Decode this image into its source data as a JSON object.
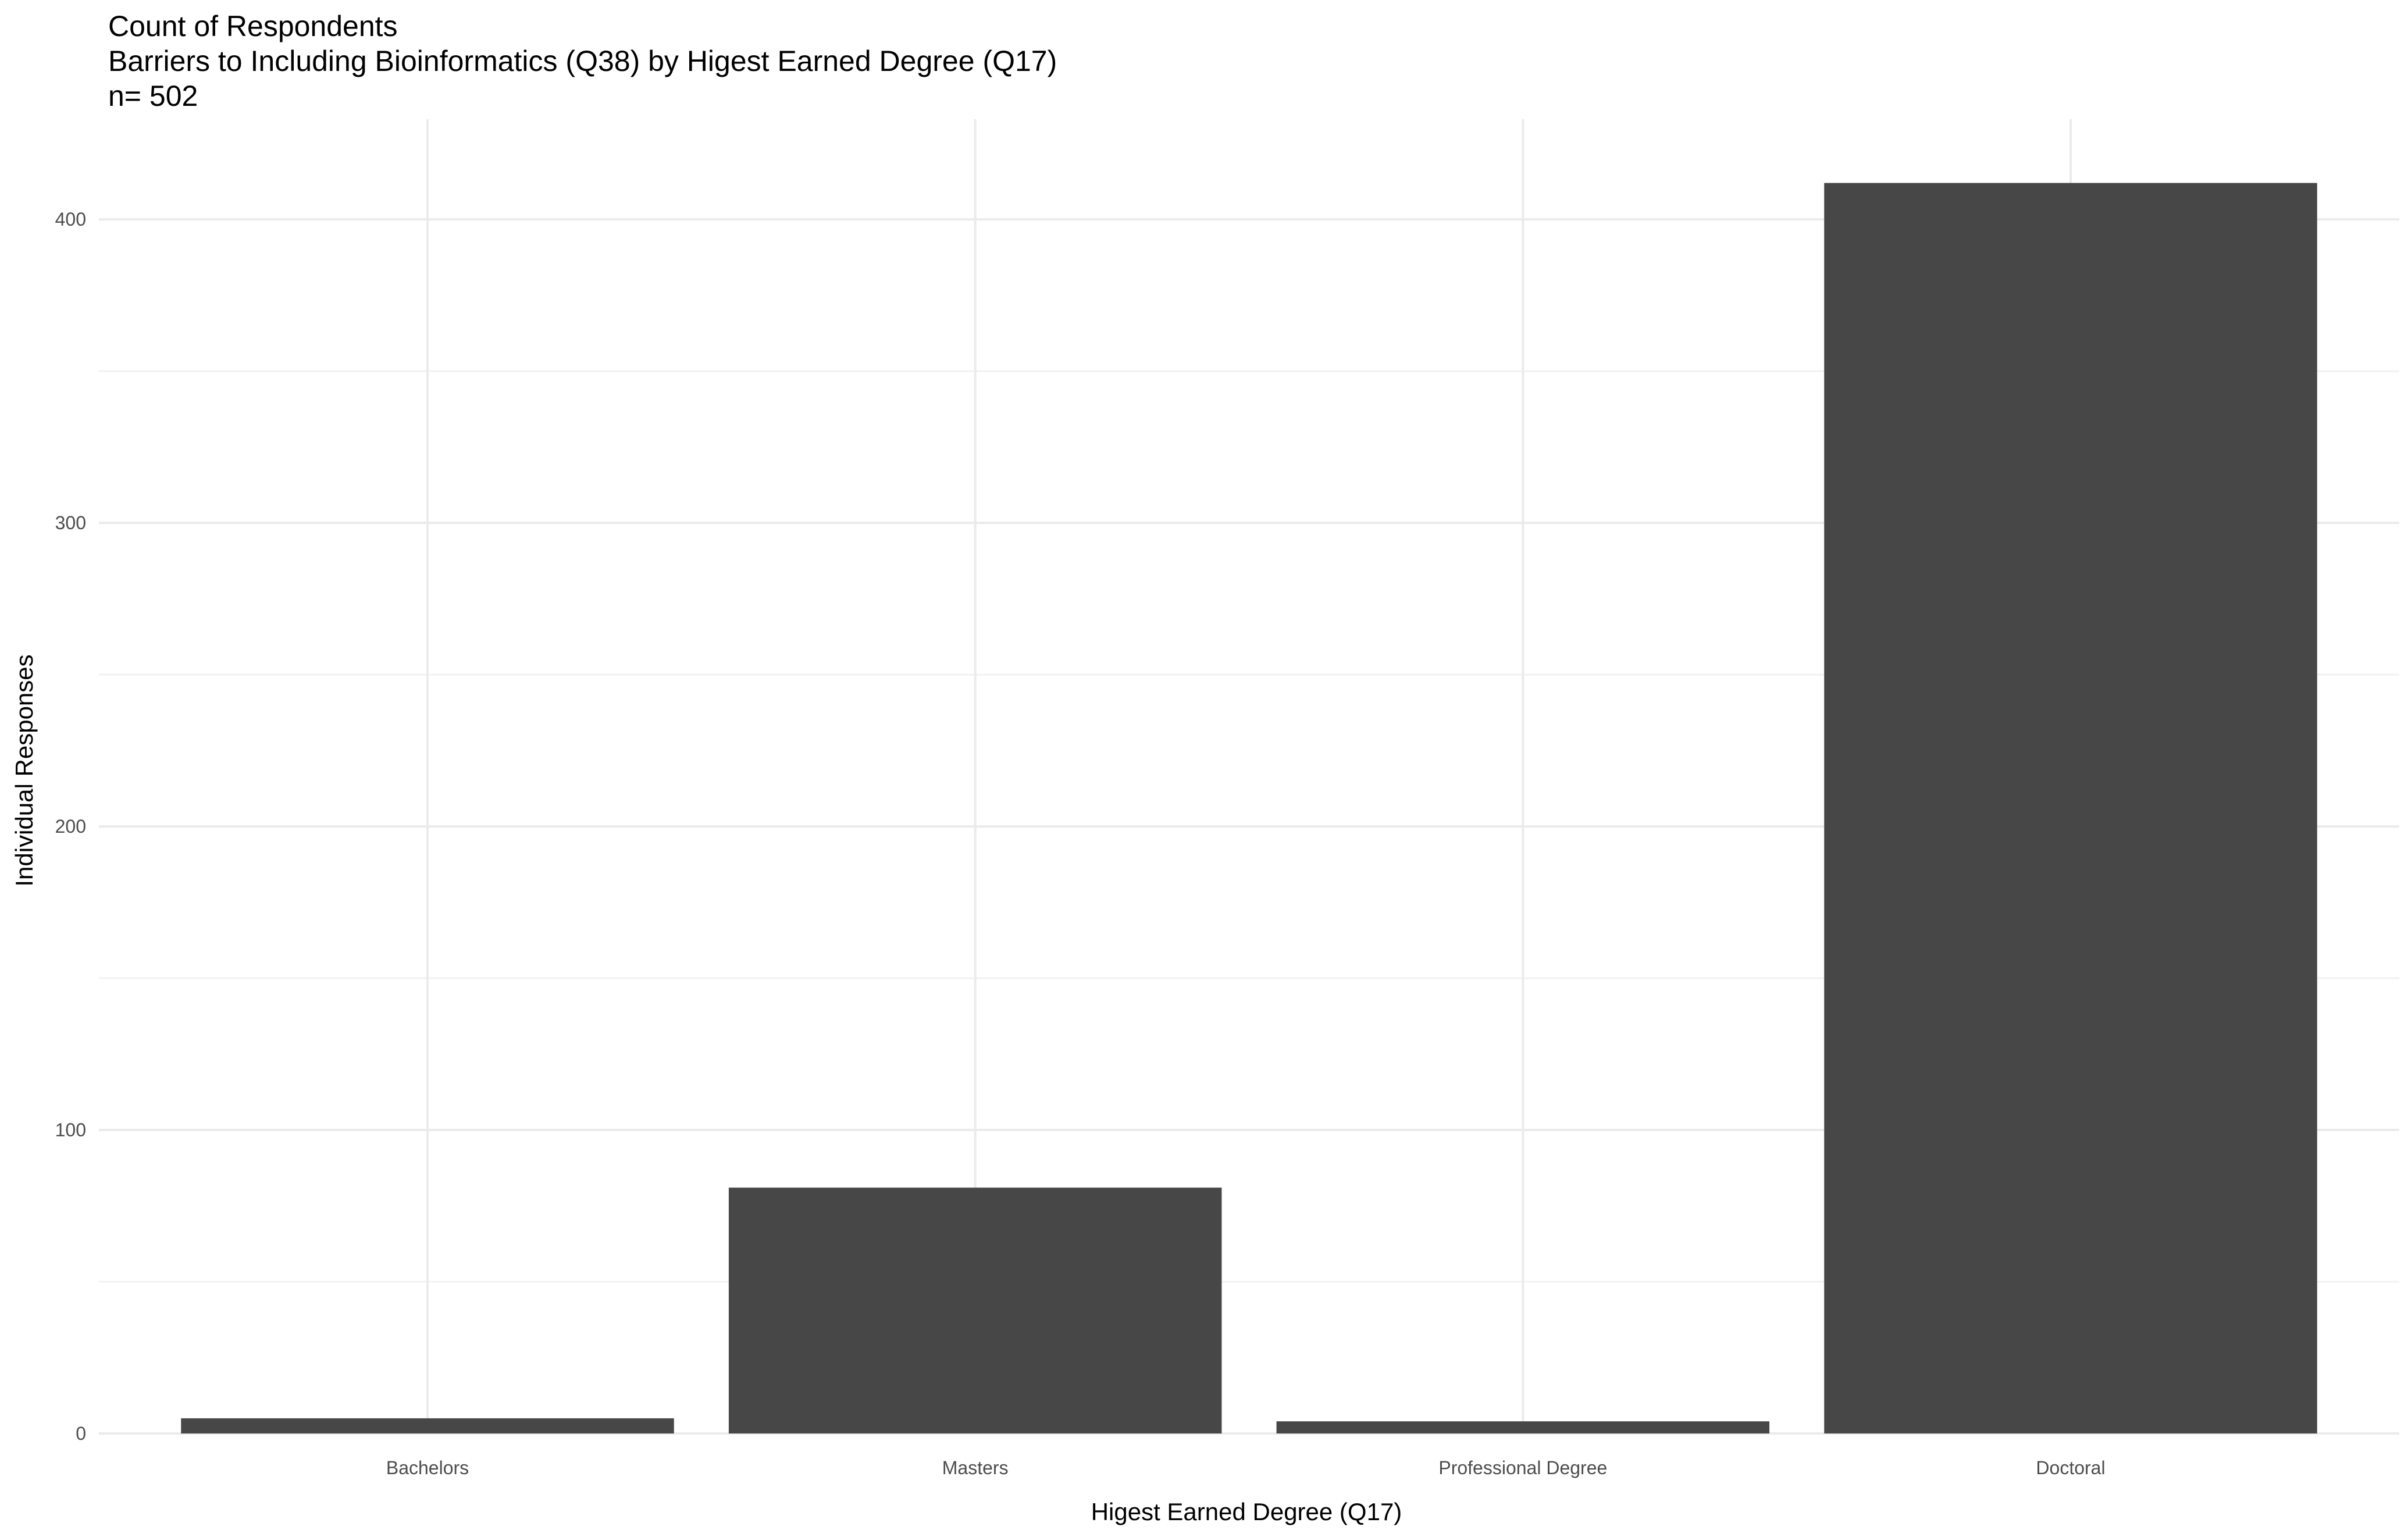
{
  "chart_data": {
    "type": "bar",
    "title_lines": [
      "Count of Respondents",
      "Barriers to Including Bioinformatics (Q38) by Higest Earned Degree (Q17)",
      "n= 502"
    ],
    "xlabel": "Higest Earned Degree (Q17)",
    "ylabel": "Individual Responses",
    "categories": [
      "Bachelors",
      "Masters",
      "Professional Degree",
      "Doctoral"
    ],
    "values": [
      5,
      81,
      4,
      412
    ],
    "ylim": [
      0,
      433
    ],
    "yticks": [
      0,
      100,
      200,
      300,
      400
    ],
    "ytick_labels": [
      "0",
      "100",
      "200",
      "300",
      "400"
    ],
    "grid": true,
    "bar_color": "#474747",
    "theme": "minimal"
  }
}
